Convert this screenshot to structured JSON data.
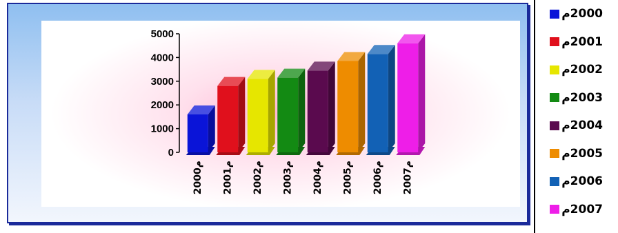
{
  "chart_data": {
    "type": "bar",
    "categories": [
      "2000م",
      "2001م",
      "2002م",
      "2003م",
      "2004م",
      "2005م",
      "2006م",
      "2007م"
    ],
    "series": [
      {
        "name": "2000م",
        "values": [
          1600,
          0,
          0,
          0,
          0,
          0,
          0,
          0
        ]
      },
      {
        "name": "2001م",
        "values": [
          0,
          2800,
          0,
          0,
          0,
          0,
          0,
          0
        ]
      },
      {
        "name": "2002م",
        "values": [
          0,
          0,
          3100,
          0,
          0,
          0,
          0,
          0
        ]
      },
      {
        "name": "2003م",
        "values": [
          0,
          0,
          0,
          3150,
          0,
          0,
          0,
          0
        ]
      },
      {
        "name": "2004م",
        "values": [
          0,
          0,
          0,
          0,
          3450,
          0,
          0,
          0
        ]
      },
      {
        "name": "2005م",
        "values": [
          0,
          0,
          0,
          0,
          0,
          3850,
          0,
          0
        ]
      },
      {
        "name": "2006م",
        "values": [
          0,
          0,
          0,
          0,
          0,
          0,
          4150,
          0
        ]
      },
      {
        "name": "2007م",
        "values": [
          0,
          0,
          0,
          0,
          0,
          0,
          0,
          4600
        ]
      }
    ],
    "values": [
      1600,
      2800,
      3100,
      3150,
      3450,
      3850,
      4150,
      4600
    ],
    "colors": [
      "#0a14d8",
      "#e0101c",
      "#e6e600",
      "#138a13",
      "#5a0a4e",
      "#ee8c00",
      "#1261b5",
      "#ee1ee8"
    ],
    "yticks": [
      "0",
      "1000",
      "2000",
      "3000",
      "4000",
      "5000"
    ],
    "ylim": [
      0,
      5000
    ],
    "title": "",
    "xlabel": "",
    "ylabel": "",
    "grid": false,
    "legend_position": "right",
    "style": "3d-bar"
  },
  "legend": {
    "items": [
      {
        "label": "2000م",
        "color": "#0a14d8"
      },
      {
        "label": "2001م",
        "color": "#e0101c"
      },
      {
        "label": "2002م",
        "color": "#e6e600"
      },
      {
        "label": "2003م",
        "color": "#138a13"
      },
      {
        "label": "2004م",
        "color": "#5a0a4e"
      },
      {
        "label": "2005م",
        "color": "#ee8c00"
      },
      {
        "label": "2006م",
        "color": "#1261b5"
      },
      {
        "label": "2007م",
        "color": "#ee1ee8"
      }
    ]
  }
}
